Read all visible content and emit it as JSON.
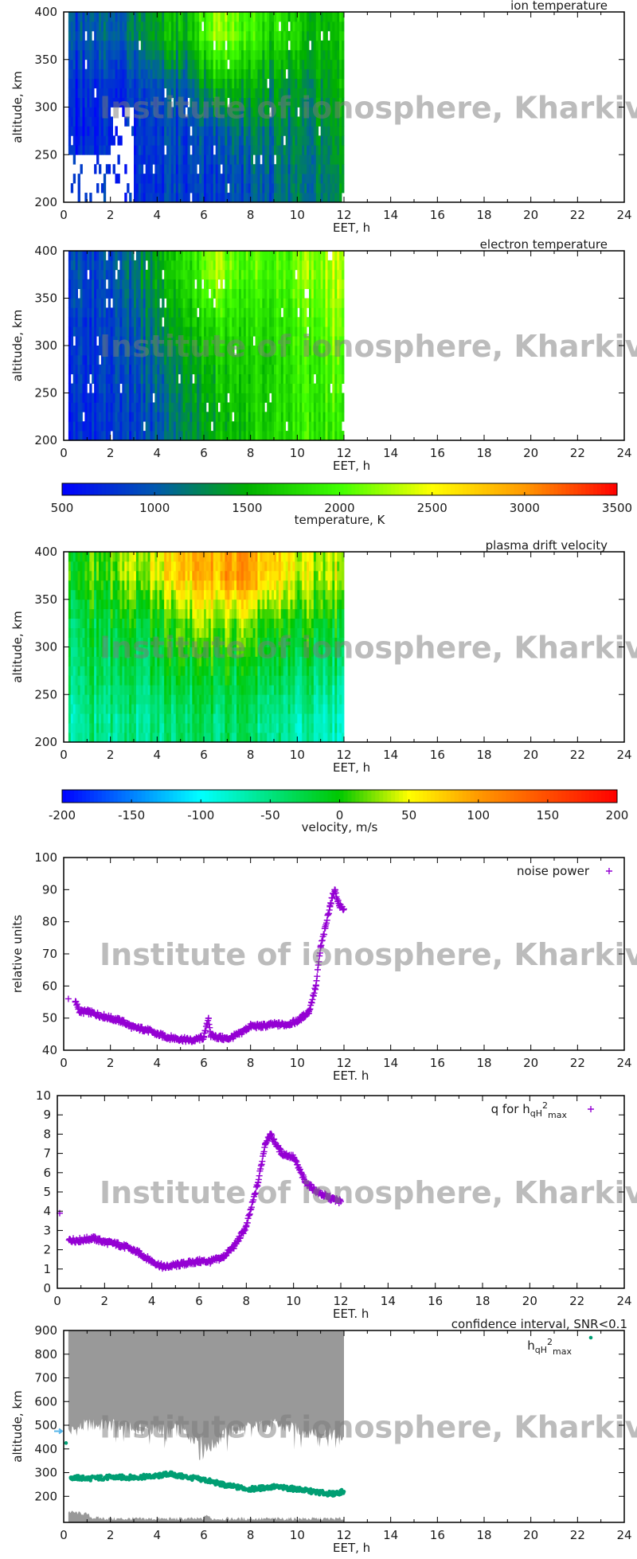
{
  "watermark": "Institute of ionosphere, Kharkiv",
  "chart_data": [
    {
      "type": "heatmap",
      "title": "ion temperature",
      "xlabel": "EET, h",
      "ylabel": "altitude, km",
      "xlim": [
        0,
        24
      ],
      "ylim": [
        200,
        400
      ],
      "xticks": [
        "0",
        "2",
        "4",
        "6",
        "8",
        "10",
        "12",
        "14",
        "16",
        "18",
        "20",
        "22",
        "24"
      ],
      "yticks": [
        "200",
        "250",
        "300",
        "350",
        "400"
      ],
      "colorbar": 0,
      "data_xrange": [
        0.2,
        12
      ],
      "x_centers": [
        0.5,
        1.5,
        2.5,
        3.5,
        4.5,
        5.5,
        6.5,
        7.5,
        8.5,
        9.5,
        10.5,
        11.5
      ],
      "y_centers": [
        375,
        325,
        275,
        225
      ],
      "z": [
        [
          900,
          1000,
          1100,
          1300,
          1500,
          1600,
          2300,
          2000,
          1800,
          1700,
          1600,
          1600
        ],
        [
          700,
          750,
          800,
          900,
          1000,
          1100,
          1600,
          1500,
          1400,
          1300,
          1400,
          1500
        ],
        [
          600,
          650,
          null,
          800,
          850,
          900,
          1000,
          1100,
          1200,
          1200,
          1300,
          1400
        ],
        [
          null,
          null,
          null,
          750,
          800,
          850,
          850,
          900,
          1000,
          1100,
          1200,
          1300
        ]
      ]
    },
    {
      "type": "heatmap",
      "title": "electron temperature",
      "xlabel": "EET, h",
      "ylabel": "altitude, km",
      "xlim": [
        0,
        24
      ],
      "ylim": [
        200,
        400
      ],
      "xticks": [
        "0",
        "2",
        "4",
        "6",
        "8",
        "10",
        "12",
        "14",
        "16",
        "18",
        "20",
        "22",
        "24"
      ],
      "yticks": [
        "200",
        "250",
        "300",
        "350",
        "400"
      ],
      "colorbar": 0,
      "data_xrange": [
        0.2,
        12
      ],
      "x_centers": [
        0.5,
        1.5,
        2.5,
        3.5,
        4.5,
        5.5,
        6.5,
        7.5,
        8.5,
        9.5,
        10.5,
        11.5
      ],
      "y_centers": [
        375,
        325,
        275,
        225
      ],
      "z": [
        [
          900,
          850,
          1000,
          1300,
          1600,
          1800,
          2300,
          2000,
          2000,
          2000,
          2200,
          2300
        ],
        [
          800,
          800,
          900,
          1100,
          1400,
          1600,
          1800,
          1800,
          1800,
          1900,
          2000,
          2200
        ],
        [
          750,
          800,
          850,
          1000,
          1200,
          1400,
          1600,
          1700,
          1700,
          1800,
          1900,
          2000
        ],
        [
          700,
          750,
          800,
          900,
          1100,
          1300,
          1500,
          1600,
          1700,
          1800,
          1900,
          1900
        ]
      ]
    },
    {
      "type": "heatmap",
      "title": "plasma drift velocity",
      "xlabel": "EET, h",
      "ylabel": "altitude, km",
      "xlim": [
        0,
        24
      ],
      "ylim": [
        200,
        400
      ],
      "xticks": [
        "0",
        "2",
        "4",
        "6",
        "8",
        "10",
        "12",
        "14",
        "16",
        "18",
        "20",
        "22",
        "24"
      ],
      "yticks": [
        "200",
        "250",
        "300",
        "350",
        "400"
      ],
      "colorbar": 1,
      "data_xrange": [
        0.2,
        12
      ],
      "x_centers": [
        0.5,
        1.5,
        2.5,
        3.5,
        4.5,
        5.5,
        6.5,
        7.5,
        8.5,
        9.5,
        10.5,
        11.5
      ],
      "y_centers": [
        375,
        325,
        275,
        225
      ],
      "z": [
        [
          0,
          10,
          20,
          40,
          60,
          80,
          90,
          100,
          80,
          60,
          40,
          40
        ],
        [
          -30,
          -20,
          -20,
          -10,
          0,
          20,
          30,
          20,
          10,
          0,
          0,
          -10
        ],
        [
          -40,
          -30,
          -40,
          -30,
          -20,
          -20,
          -10,
          -20,
          -20,
          -30,
          -30,
          -40
        ],
        [
          -60,
          -50,
          -60,
          -50,
          -50,
          -40,
          -40,
          -40,
          -50,
          -60,
          -60,
          -70
        ]
      ]
    },
    {
      "type": "scatter",
      "xlabel": "EET. h",
      "ylabel": "relative units",
      "xlim": [
        0,
        24
      ],
      "ylim": [
        40,
        100
      ],
      "xticks": [
        "0",
        "2",
        "4",
        "6",
        "8",
        "10",
        "12",
        "14",
        "16",
        "18",
        "20",
        "22",
        "24"
      ],
      "yticks": [
        "40",
        "50",
        "60",
        "70",
        "80",
        "90",
        "100"
      ],
      "legend_position": "top-right",
      "series": [
        {
          "name": "noise power",
          "color": "#9400d3",
          "marker": "plus",
          "x": [
            0.2,
            0.5,
            0.7,
            1,
            1.5,
            2,
            2.5,
            3,
            3.5,
            4,
            4.5,
            5,
            5.5,
            6,
            6.2,
            6.3,
            7,
            7.5,
            8,
            8.5,
            9,
            9.5,
            10,
            10.5,
            10.8,
            11,
            11.2,
            11.4,
            11.6,
            11.8,
            12
          ],
          "y": [
            56,
            55,
            52,
            52,
            51,
            50,
            49,
            47,
            46.5,
            45,
            44,
            43.5,
            43,
            44,
            50,
            44.5,
            43.5,
            45,
            47.5,
            47.5,
            48,
            48,
            49,
            52,
            60,
            72,
            78,
            85,
            90,
            85,
            84
          ]
        }
      ]
    },
    {
      "type": "scatter",
      "xlabel": "EET. h",
      "ylabel": "",
      "xlim": [
        0,
        24
      ],
      "ylim": [
        0,
        10
      ],
      "xticks": [
        "0",
        "2",
        "4",
        "6",
        "8",
        "10",
        "12",
        "14",
        "16",
        "18",
        "20",
        "22",
        "24"
      ],
      "yticks": [
        "0",
        "1",
        "2",
        "3",
        "4",
        "5",
        "6",
        "7",
        "8",
        "9",
        "10"
      ],
      "legend_position": "top-right",
      "series": [
        {
          "name": "q for h",
          "name_sub": "qH",
          "name_sup": "2",
          "name_sub2": "max",
          "color": "#9400d3",
          "marker": "plus",
          "x": [
            0.1,
            0.5,
            1,
            1.5,
            2,
            2.5,
            3,
            3.5,
            4,
            4.5,
            5,
            5.5,
            6,
            6.5,
            7,
            7.5,
            8,
            8.5,
            8.8,
            9,
            9.5,
            10,
            10.5,
            11,
            11.5,
            12
          ],
          "y": [
            3.9,
            2.5,
            2.5,
            2.6,
            2.4,
            2.3,
            2.1,
            1.8,
            1.4,
            1.1,
            1.2,
            1.3,
            1.4,
            1.4,
            1.6,
            2.2,
            3.2,
            5.5,
            7.5,
            8,
            7,
            6.8,
            5.5,
            5,
            4.7,
            4.5
          ]
        }
      ]
    },
    {
      "type": "scatter",
      "title": "confidence interval, SNR<0.1",
      "xlabel": "EET, h",
      "ylabel": "altitude, km",
      "xlim": [
        0,
        24
      ],
      "ylim": [
        90,
        900
      ],
      "xticks": [
        "0",
        "2",
        "4",
        "6",
        "8",
        "10",
        "12",
        "14",
        "16",
        "18",
        "20",
        "22",
        "24"
      ],
      "yticks": [
        "200",
        "300",
        "400",
        "500",
        "600",
        "700",
        "800",
        "900"
      ],
      "legend_position": "top-right",
      "marker_arrow_altitude": 475,
      "marker_arrow_color": "#56b4e9",
      "confidence_color": "#999999",
      "confidence_upper": {
        "x": [
          0.2,
          1,
          2,
          3,
          4,
          5,
          6,
          6.2,
          7,
          8,
          9,
          10,
          11,
          12
        ],
        "y": [
          470,
          500,
          500,
          480,
          480,
          480,
          430,
          400,
          470,
          490,
          500,
          480,
          470,
          450
        ]
      },
      "confidence_lower": {
        "x": [
          0.2,
          1,
          1.2,
          2,
          6,
          6.1,
          6.3,
          12
        ],
        "y": [
          135,
          125,
          110,
          105,
          105,
          125,
          105,
          105
        ]
      },
      "series": [
        {
          "name": "h",
          "name_sub": "qH",
          "name_sup": "2",
          "name_sub2": "max",
          "color": "#009e73",
          "marker": "dot",
          "x": [
            0.1,
            0.3,
            1,
            2,
            3,
            4,
            4.5,
            5,
            6,
            7,
            8,
            9,
            10,
            11,
            11.5,
            12
          ],
          "y": [
            425,
            280,
            275,
            280,
            280,
            285,
            295,
            285,
            270,
            245,
            230,
            240,
            230,
            215,
            210,
            220
          ]
        }
      ]
    }
  ],
  "colorbars": [
    {
      "label": "temperature, K",
      "range": [
        500,
        3500
      ],
      "ticks": [
        "500",
        "1000",
        "1500",
        "2000",
        "2500",
        "3000",
        "3500"
      ],
      "stops": [
        [
          500,
          "#0000ff"
        ],
        [
          1000,
          "#0058b0"
        ],
        [
          1500,
          "#00b000"
        ],
        [
          2000,
          "#40ff00"
        ],
        [
          2500,
          "#ffff00"
        ],
        [
          3000,
          "#ff9900"
        ],
        [
          3500,
          "#ff0000"
        ]
      ]
    },
    {
      "label": "velocity, m/s",
      "range": [
        -200,
        200
      ],
      "ticks": [
        "-200",
        "-150",
        "-100",
        "-50",
        "0",
        "50",
        "100",
        "150",
        "200"
      ],
      "stops": [
        [
          -200,
          "#0000ff"
        ],
        [
          -100,
          "#00ffff"
        ],
        [
          0,
          "#00c800"
        ],
        [
          50,
          "#ffff00"
        ],
        [
          100,
          "#ff9900"
        ],
        [
          200,
          "#ff0000"
        ]
      ]
    }
  ]
}
